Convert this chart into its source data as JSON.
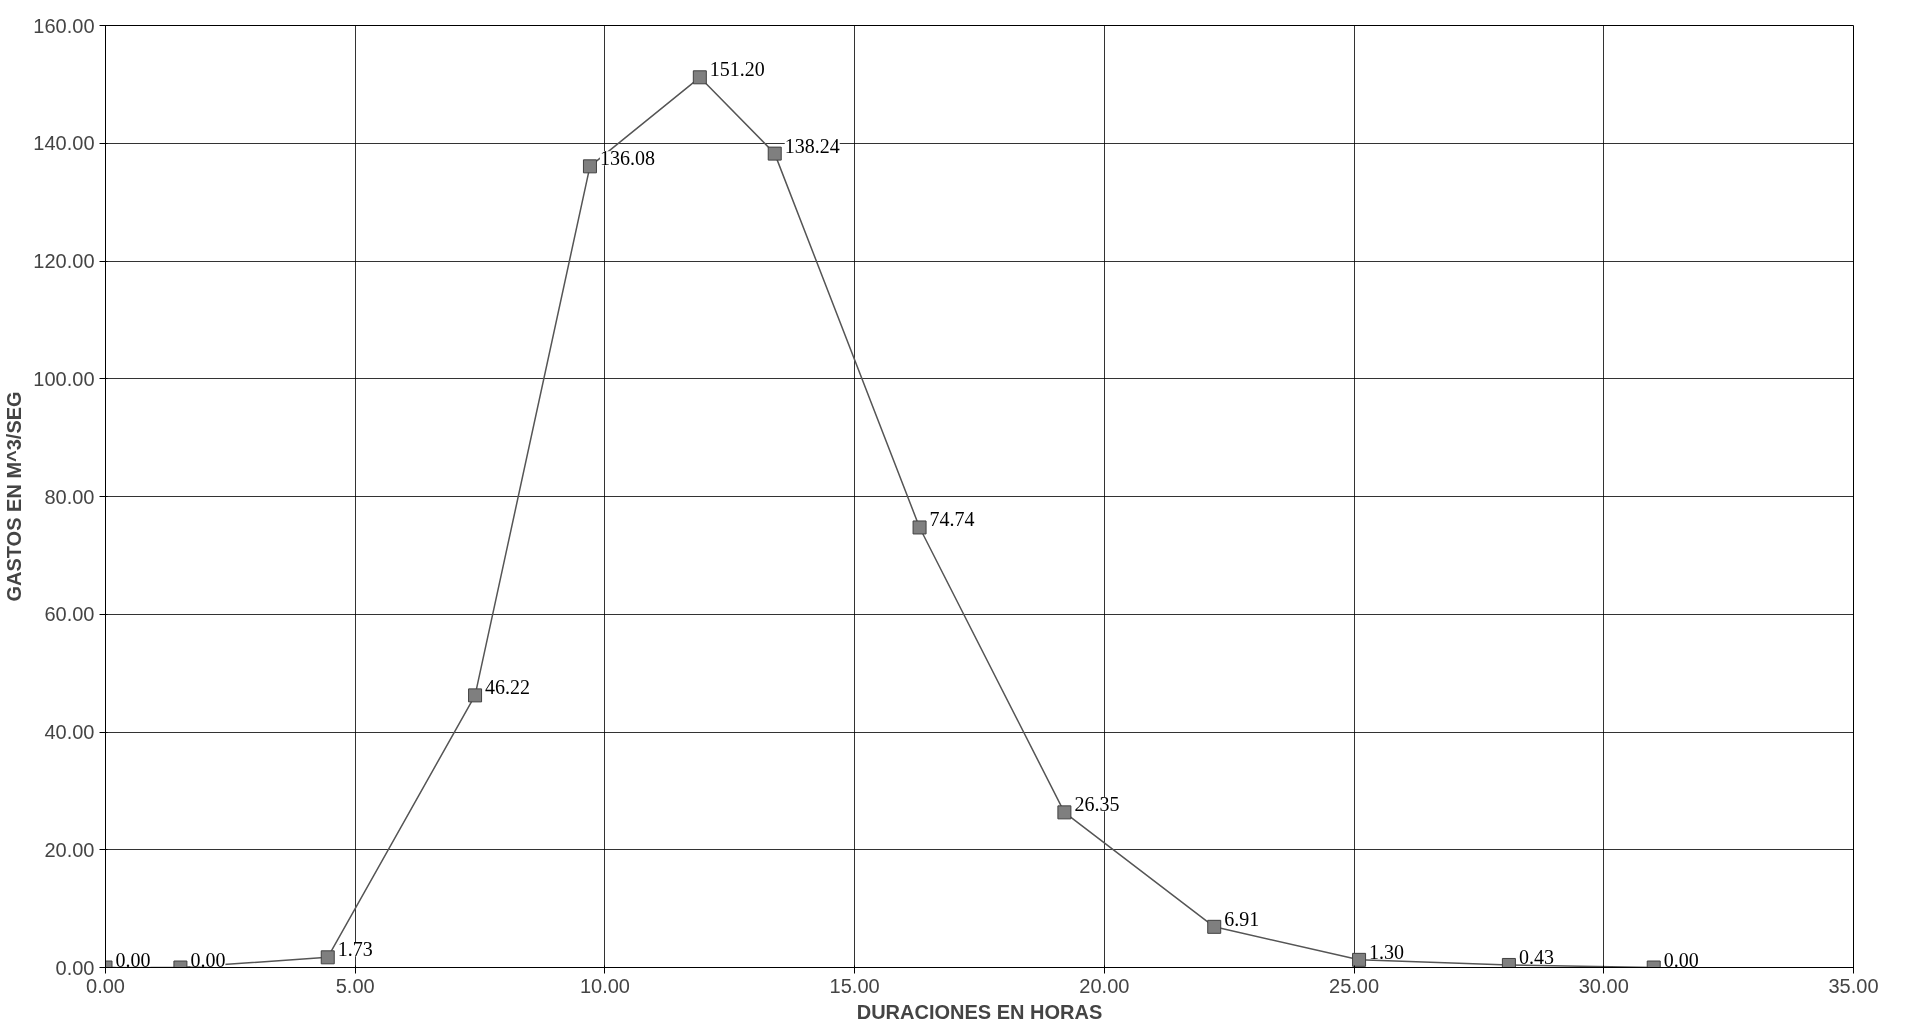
{
  "chart_data": {
    "type": "line",
    "xlabel": "DURACIONES EN HORAS",
    "ylabel": "GASTOS EN M^3/SEG",
    "x": [
      0,
      1.5,
      4.45,
      7.4,
      9.7,
      11.9,
      13.4,
      16.3,
      19.2,
      22.2,
      25.1,
      28.1,
      31.0
    ],
    "series": [
      {
        "color": "#7f7f7f",
        "values": [
          0.0,
          0.0,
          1.73,
          46.22,
          136.08,
          151.2,
          138.24,
          74.74,
          26.35,
          6.91,
          1.3,
          0.43,
          0.0
        ],
        "value_labels": [
          "0.00",
          "0.00",
          "1.73",
          "46.22",
          "136.08",
          "151.20",
          "138.24",
          "74.74",
          "26.35",
          "6.91",
          "1.30",
          "0.43",
          "0.00"
        ]
      }
    ],
    "marker": "square",
    "line_style": "solid",
    "grid": true,
    "xlim": [
      0,
      35
    ],
    "ylim": [
      0,
      160
    ],
    "xticks": [
      {
        "value": 0,
        "label": "0.00"
      },
      {
        "value": 5,
        "label": "5.00"
      },
      {
        "value": 10,
        "label": "10.00"
      },
      {
        "value": 15,
        "label": "15.00"
      },
      {
        "value": 20,
        "label": "20.00"
      },
      {
        "value": 25,
        "label": "25.00"
      },
      {
        "value": 30,
        "label": "30.00"
      },
      {
        "value": 35,
        "label": "35.00"
      }
    ],
    "yticks": [
      {
        "value": 0,
        "label": "0.00"
      },
      {
        "value": 20,
        "label": "20.00"
      },
      {
        "value": 40,
        "label": "40.00"
      },
      {
        "value": 60,
        "label": "60.00"
      },
      {
        "value": 80,
        "label": "80.00"
      },
      {
        "value": 100,
        "label": "100.00"
      },
      {
        "value": 120,
        "label": "120.00"
      },
      {
        "value": 140,
        "label": "140.00"
      },
      {
        "value": 160,
        "label": "160.00"
      }
    ]
  }
}
